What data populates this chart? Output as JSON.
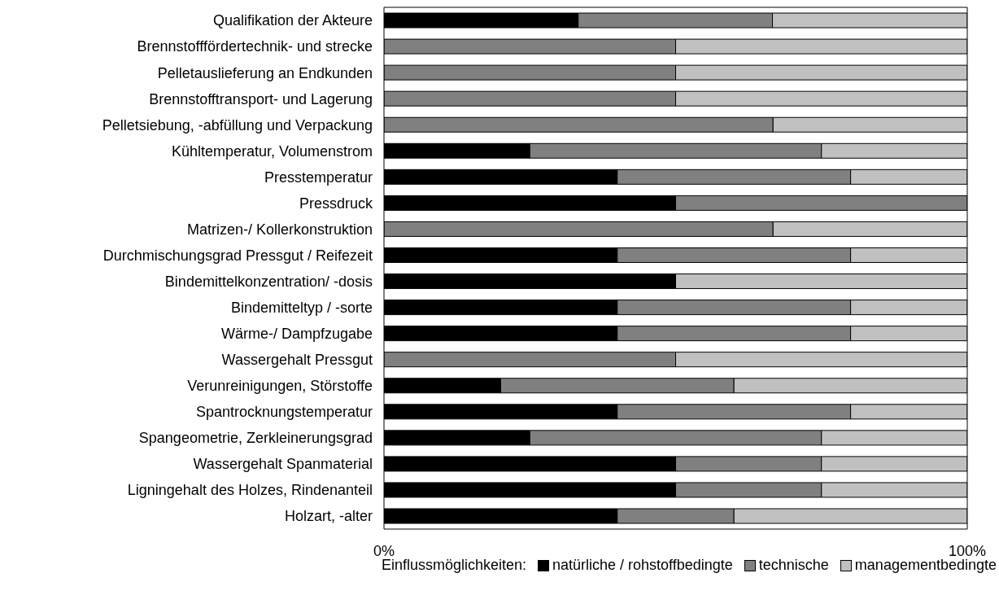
{
  "chart_data": {
    "type": "bar",
    "orientation": "horizontal",
    "stacked": true,
    "categories": [
      "Qualifikation der Akteure",
      "Brennstofffördertechnik- und strecke",
      "Pelletauslieferung an Endkunden",
      "Brennstofftransport- und Lagerung",
      "Pelletsiebung, -abfüllung und Verpackung",
      "Kühltemperatur, Volumenstrom",
      "Presstemperatur",
      "Pressdruck",
      "Matrizen-/ Kollerkonstruktion",
      "Durchmischungsgrad Pressgut / Reifezeit",
      "Bindemittelkonzentration/ -dosis",
      "Bindemitteltyp / -sorte",
      "Wärme-/ Dampfzugabe",
      "Wassergehalt Pressgut",
      "Verunreinigungen, Störstoffe",
      "Spantrocknungstemperatur",
      "Spangeometrie, Zerkleinerungsgrad",
      "Wassergehalt Spanmaterial",
      "Ligningehalt des Holzes, Rindenanteil",
      "Holzart, -alter"
    ],
    "series": [
      {
        "name": "natürliche / rohstoffbedingte",
        "color": "#000000",
        "values": [
          33.3,
          0,
          0,
          0,
          0,
          25,
          40,
          50,
          0,
          40,
          50,
          40,
          40,
          0,
          20,
          40,
          25,
          50,
          50,
          40
        ]
      },
      {
        "name": "technische",
        "color": "#808080",
        "values": [
          33.3,
          50,
          50,
          50,
          66.7,
          50,
          40,
          50,
          66.7,
          40,
          0,
          40,
          40,
          50,
          40,
          40,
          50,
          25,
          25,
          20
        ]
      },
      {
        "name": "managementbedingte",
        "color": "#c0c0c0",
        "values": [
          33.4,
          50,
          50,
          50,
          33.3,
          25,
          20,
          0,
          33.3,
          20,
          50,
          20,
          20,
          50,
          40,
          20,
          25,
          25,
          25,
          40
        ]
      }
    ],
    "xlim": [
      0,
      100
    ],
    "xticks": [
      {
        "value": 0,
        "label": "0%"
      },
      {
        "value": 100,
        "label": "100%"
      }
    ],
    "legend": "bottom",
    "legend_title": "Einflussmöglichkeiten:",
    "grid": false
  }
}
